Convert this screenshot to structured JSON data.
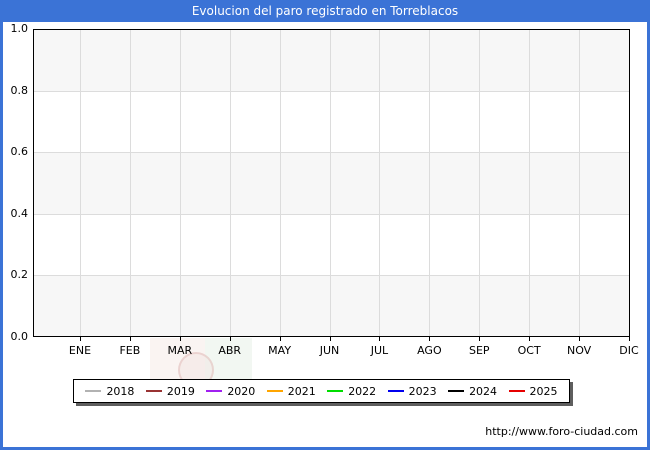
{
  "window": {
    "title": "Evolucion del paro registrado en Torreblacos"
  },
  "theme": {
    "frame_blue": "#3b73d6",
    "band_gray": "#f7f7f7",
    "band_white": "#ffffff",
    "gridline": "#dcdcdc",
    "plot_border": "#000000"
  },
  "chart_data": {
    "type": "line",
    "title": "Evolucion del paro registrado en Torreblacos",
    "xlabel": "",
    "ylabel": "",
    "categories": [
      "ENE",
      "FEB",
      "MAR",
      "ABR",
      "MAY",
      "JUN",
      "JUL",
      "AGO",
      "SEP",
      "OCT",
      "NOV",
      "DIC"
    ],
    "y_ticks": [
      "1.0",
      "0.8",
      "0.6",
      "0.4",
      "0.2",
      "0.0"
    ],
    "ylim": [
      0.0,
      1.0
    ],
    "grid": true,
    "legend_position": "bottom",
    "series": [
      {
        "name": "2018",
        "color": "#b2b2b2",
        "values": []
      },
      {
        "name": "2019",
        "color": "#993333",
        "values": []
      },
      {
        "name": "2020",
        "color": "#a020f0",
        "values": []
      },
      {
        "name": "2021",
        "color": "#ffa500",
        "values": []
      },
      {
        "name": "2022",
        "color": "#00dd00",
        "values": []
      },
      {
        "name": "2023",
        "color": "#0000ee",
        "values": []
      },
      {
        "name": "2024",
        "color": "#000000",
        "values": []
      },
      {
        "name": "2025",
        "color": "#e60000",
        "values": []
      }
    ]
  },
  "footer": {
    "url": "http://www.foro-ciudad.com"
  }
}
